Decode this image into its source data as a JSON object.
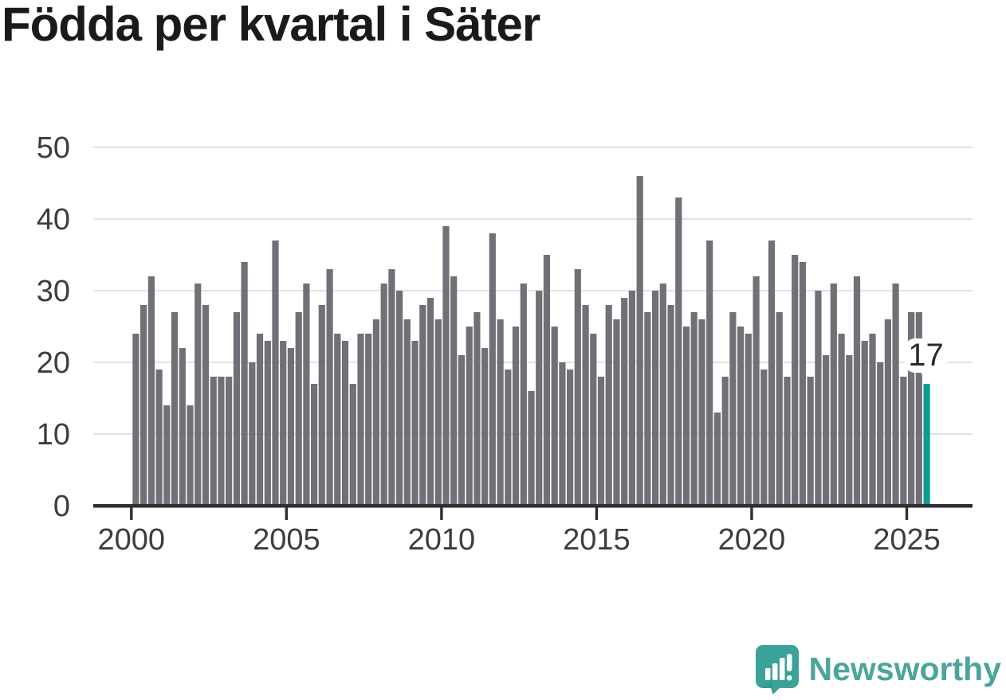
{
  "chart_data": {
    "type": "bar",
    "title": "Födda per kvartal i Säter",
    "xlabel": "",
    "ylabel": "",
    "ylim": [
      0,
      50
    ],
    "grid": true,
    "y_ticks": [
      0,
      10,
      20,
      30,
      40,
      50
    ],
    "x_tick_labels": [
      "2000",
      "2005",
      "2010",
      "2015",
      "2020",
      "2025"
    ],
    "period_start": "2000-Q1",
    "period_end": "2025-Q3",
    "frequency": "quarterly",
    "categories": [
      "2000-Q1",
      "2000-Q2",
      "2000-Q3",
      "2000-Q4",
      "2001-Q1",
      "2001-Q2",
      "2001-Q3",
      "2001-Q4",
      "2002-Q1",
      "2002-Q2",
      "2002-Q3",
      "2002-Q4",
      "2003-Q1",
      "2003-Q2",
      "2003-Q3",
      "2003-Q4",
      "2004-Q1",
      "2004-Q2",
      "2004-Q3",
      "2004-Q4",
      "2005-Q1",
      "2005-Q2",
      "2005-Q3",
      "2005-Q4",
      "2006-Q1",
      "2006-Q2",
      "2006-Q3",
      "2006-Q4",
      "2007-Q1",
      "2007-Q2",
      "2007-Q3",
      "2007-Q4",
      "2008-Q1",
      "2008-Q2",
      "2008-Q3",
      "2008-Q4",
      "2009-Q1",
      "2009-Q2",
      "2009-Q3",
      "2009-Q4",
      "2010-Q1",
      "2010-Q2",
      "2010-Q3",
      "2010-Q4",
      "2011-Q1",
      "2011-Q2",
      "2011-Q3",
      "2011-Q4",
      "2012-Q1",
      "2012-Q2",
      "2012-Q3",
      "2012-Q4",
      "2013-Q1",
      "2013-Q2",
      "2013-Q3",
      "2013-Q4",
      "2014-Q1",
      "2014-Q2",
      "2014-Q3",
      "2014-Q4",
      "2015-Q1",
      "2015-Q2",
      "2015-Q3",
      "2015-Q4",
      "2016-Q1",
      "2016-Q2",
      "2016-Q3",
      "2016-Q4",
      "2017-Q1",
      "2017-Q2",
      "2017-Q3",
      "2017-Q4",
      "2018-Q1",
      "2018-Q2",
      "2018-Q3",
      "2018-Q4",
      "2019-Q1",
      "2019-Q2",
      "2019-Q3",
      "2019-Q4",
      "2020-Q1",
      "2020-Q2",
      "2020-Q3",
      "2020-Q4",
      "2021-Q1",
      "2021-Q2",
      "2021-Q3",
      "2021-Q4",
      "2022-Q1",
      "2022-Q2",
      "2022-Q3",
      "2022-Q4",
      "2023-Q1",
      "2023-Q2",
      "2023-Q3",
      "2023-Q4",
      "2024-Q1",
      "2024-Q2",
      "2024-Q3",
      "2024-Q4",
      "2025-Q1",
      "2025-Q2",
      "2025-Q3"
    ],
    "values": [
      24,
      28,
      32,
      19,
      14,
      27,
      22,
      14,
      31,
      28,
      18,
      18,
      18,
      27,
      34,
      20,
      24,
      23,
      37,
      23,
      22,
      27,
      31,
      17,
      28,
      33,
      24,
      23,
      17,
      24,
      24,
      26,
      31,
      33,
      30,
      26,
      23,
      28,
      29,
      26,
      39,
      32,
      21,
      25,
      27,
      22,
      38,
      26,
      19,
      25,
      31,
      16,
      30,
      35,
      25,
      20,
      19,
      33,
      28,
      24,
      18,
      28,
      26,
      29,
      30,
      46,
      27,
      30,
      31,
      28,
      43,
      25,
      27,
      26,
      37,
      13,
      18,
      27,
      25,
      24,
      32,
      19,
      37,
      27,
      18,
      35,
      34,
      18,
      30,
      21,
      31,
      24,
      21,
      32,
      23,
      24,
      20,
      26,
      31,
      18,
      27,
      27,
      17
    ],
    "highlight": {
      "index": 102,
      "category": "2025-Q3",
      "value": 17,
      "label": "17",
      "color": "#0b9c94"
    },
    "colors": {
      "bar": "#726f77",
      "highlight_bar": "#0b9c94",
      "gridline": "#e3e3e3",
      "axis_line": "#2f2f2f",
      "axis_text": "#3d3d3d",
      "callout_text": "#2b2b2b",
      "callout_bubble": "#ffffff"
    },
    "legend": null
  },
  "logo": {
    "text": "Newsworthy",
    "icon": "newsworthy-speech-bubble-chart-icon",
    "color": "#4ba59b",
    "icon_color": "#3aa298"
  }
}
